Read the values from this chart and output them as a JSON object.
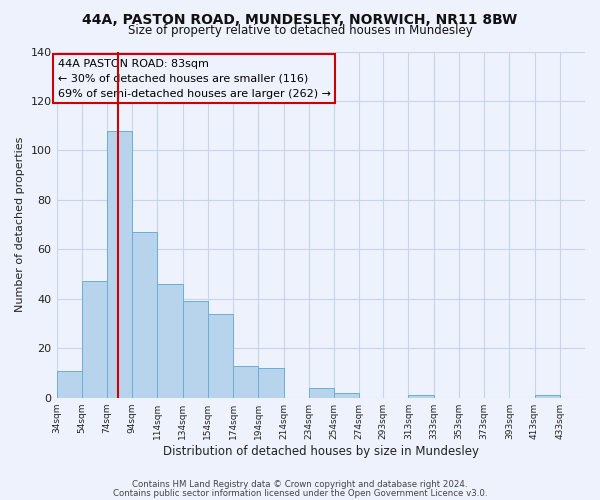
{
  "title1": "44A, PASTON ROAD, MUNDESLEY, NORWICH, NR11 8BW",
  "title2": "Size of property relative to detached houses in Mundesley",
  "xlabel": "Distribution of detached houses by size in Mundesley",
  "ylabel": "Number of detached properties",
  "bar_edges": [
    34,
    54,
    74,
    94,
    114,
    134,
    154,
    174,
    194,
    214,
    234,
    254,
    274,
    293,
    313,
    333,
    353,
    373,
    393,
    413,
    433
  ],
  "bar_heights": [
    11,
    47,
    108,
    67,
    46,
    39,
    34,
    13,
    12,
    0,
    4,
    2,
    0,
    0,
    1,
    0,
    0,
    0,
    0,
    1
  ],
  "bar_color": "#b8d4ec",
  "bar_edge_color": "#6baed6",
  "vline_x": 83,
  "vline_color": "#cc0000",
  "annotation_title": "44A PASTON ROAD: 83sqm",
  "annotation_line1": "← 30% of detached houses are smaller (116)",
  "annotation_line2": "69% of semi-detached houses are larger (262) →",
  "annotation_box_color": "#cc0000",
  "ylim": [
    0,
    140
  ],
  "yticks": [
    0,
    20,
    40,
    60,
    80,
    100,
    120,
    140
  ],
  "tick_labels": [
    "34sqm",
    "54sqm",
    "74sqm",
    "94sqm",
    "114sqm",
    "134sqm",
    "154sqm",
    "174sqm",
    "194sqm",
    "214sqm",
    "234sqm",
    "254sqm",
    "274sqm",
    "293sqm",
    "313sqm",
    "333sqm",
    "353sqm",
    "373sqm",
    "393sqm",
    "413sqm",
    "433sqm"
  ],
  "footer1": "Contains HM Land Registry data © Crown copyright and database right 2024.",
  "footer2": "Contains public sector information licensed under the Open Government Licence v3.0.",
  "bg_color": "#eef2fc",
  "grid_color": "#c8d4ee"
}
